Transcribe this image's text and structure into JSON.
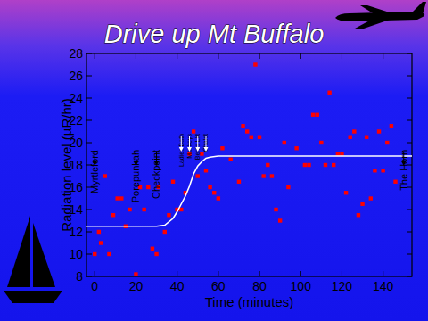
{
  "chart_data": {
    "type": "scatter",
    "title": "Drive up Mt Buffalo",
    "x_label": "Time (minutes)",
    "y_label": "Radiation level (µR/hr)",
    "xlim": [
      -4,
      154
    ],
    "xticks": [
      0,
      20,
      40,
      60,
      80,
      100,
      120,
      140
    ],
    "ylim": [
      8,
      28
    ],
    "yticks": [
      8,
      10,
      12,
      14,
      16,
      18,
      20,
      22,
      24,
      26,
      28
    ],
    "grid": false,
    "series": [
      {
        "type": "scatter",
        "color": "#ff0000",
        "marker": "square",
        "x": [
          0,
          2,
          3,
          5,
          7,
          9,
          11,
          13,
          15,
          17,
          20,
          22,
          24,
          26,
          28,
          30,
          31,
          34,
          36,
          38,
          40,
          42,
          44,
          46,
          48,
          50,
          52,
          54,
          56,
          58,
          60,
          62,
          66,
          70,
          72,
          74,
          76,
          78,
          80,
          82,
          84,
          86,
          88,
          90,
          92,
          94,
          98,
          102,
          104,
          106,
          108,
          110,
          112,
          114,
          116,
          118,
          120,
          122,
          124,
          126,
          128,
          130,
          132,
          134,
          136,
          138,
          140,
          142,
          144,
          146
        ],
        "values": [
          10,
          12,
          11,
          17,
          10,
          13.5,
          15,
          15,
          12.5,
          14,
          8.2,
          16,
          14,
          16,
          10.5,
          10,
          16,
          12,
          13.5,
          16.5,
          14,
          14,
          15.5,
          19,
          21,
          17,
          19,
          17.5,
          16,
          15.5,
          15,
          19.5,
          18.5,
          16.5,
          21.5,
          21,
          20.5,
          27,
          20.5,
          17,
          18,
          17,
          14,
          13,
          20,
          16,
          19.5,
          18,
          18,
          22.5,
          22.5,
          20,
          18,
          24.5,
          18,
          19,
          19,
          15.5,
          20.5,
          21,
          13.5,
          14.5,
          20.5,
          15,
          17.5,
          21,
          17.5,
          20,
          21.5,
          16.5
        ]
      },
      {
        "type": "line",
        "color": "#ffffff",
        "line_style": "solid",
        "x": [
          -4,
          0,
          20,
          30,
          34,
          38,
          40,
          42,
          44,
          46,
          48,
          50,
          52,
          54,
          56,
          60,
          80,
          154
        ],
        "values": [
          12.5,
          12.5,
          12.5,
          12.5,
          12.6,
          13.2,
          13.8,
          14.5,
          15.2,
          16.1,
          17.2,
          17.9,
          18.3,
          18.6,
          18.7,
          18.8,
          18.8,
          18.8
        ]
      }
    ],
    "annotations": [
      {
        "text": "Myrtleford",
        "x": 0
      },
      {
        "text": "Porepunkah",
        "x": 20
      },
      {
        "text": "Checkpoint",
        "x": 30
      },
      {
        "text": "Ladies Bath",
        "x": 42
      },
      {
        "text": "Mackeys",
        "x": 46
      },
      {
        "text": "Bents Lkt",
        "x": 50
      },
      {
        "text": "Chalet",
        "x": 54
      },
      {
        "text": "The Horn",
        "x": 150
      }
    ]
  }
}
